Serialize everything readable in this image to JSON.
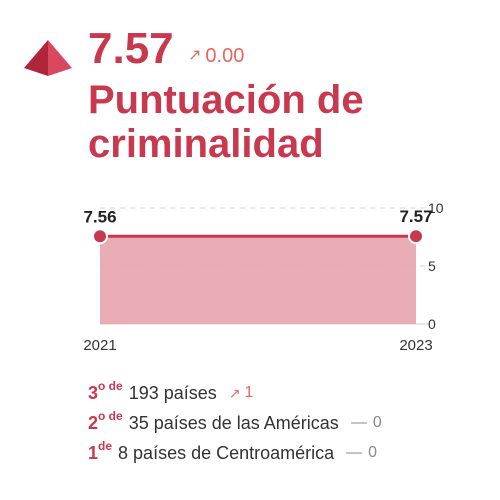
{
  "header": {
    "score": "7.57",
    "change": "0.00",
    "change_arrow": "↗",
    "title": "Puntuación de criminalidad",
    "icon": "pyramid-icon"
  },
  "colors": {
    "accent": "#c8384f",
    "fill": "#e8a3ad",
    "trend": "#e2685f",
    "neutral": "#888888"
  },
  "chart_data": {
    "type": "area",
    "x": [
      "2021",
      "2023"
    ],
    "values": [
      7.56,
      7.57
    ],
    "data_labels": [
      "7.56",
      "7.57"
    ],
    "ylim": [
      0,
      10
    ],
    "y_ticks": [
      "0",
      "5",
      "10"
    ],
    "grid": true
  },
  "rankings": [
    {
      "rank": "3",
      "suffix": "o de",
      "text": "193 países",
      "trend_symbol": "↗",
      "trend_value": "1",
      "trend": "up"
    },
    {
      "rank": "2",
      "suffix": "o de",
      "text": "35 países de las Américas",
      "trend_symbol": "—",
      "trend_value": "0",
      "trend": "flat"
    },
    {
      "rank": "1",
      "suffix": "de",
      "text": "8 países de Centroamérica",
      "trend_symbol": "—",
      "trend_value": "0",
      "trend": "flat"
    }
  ]
}
